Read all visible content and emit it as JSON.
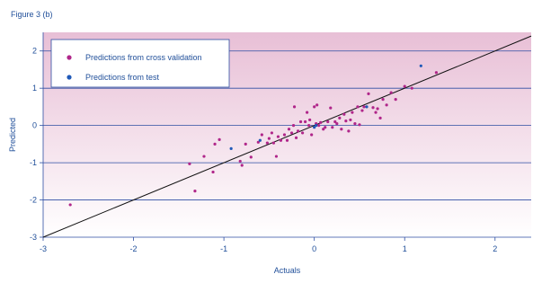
{
  "figure_label": "Figure 3 (b)",
  "colors": {
    "cross_validation": "#b0268a",
    "test": "#1f59b8",
    "axis_text": "#1f4e99",
    "gridline": "#2e4ea3",
    "line": "#111111",
    "bg_top": "#e8bfd6",
    "bg_bottom": "#ffffff"
  },
  "chart_data": {
    "type": "scatter",
    "title": "",
    "xlabel": "Actuals",
    "ylabel": "Predicted",
    "xlim": [
      -3,
      2.4
    ],
    "ylim": [
      -3,
      2.5
    ],
    "xticks": [
      "-3",
      "-2",
      "-1",
      "0",
      "1",
      "2"
    ],
    "yticks": [
      "-3",
      "-2",
      "-1",
      "0",
      "1",
      "2"
    ],
    "grid": "horizontal",
    "legend": "top-left",
    "reference_line": {
      "from": [
        -3,
        -3
      ],
      "to": [
        2.4,
        2.4
      ]
    },
    "series": [
      {
        "name": "Predictions from cross validation",
        "color": "#b0268a",
        "points": [
          [
            -2.7,
            -2.13
          ],
          [
            -1.38,
            -1.03
          ],
          [
            -1.32,
            -1.76
          ],
          [
            -1.22,
            -0.83
          ],
          [
            -1.12,
            -1.25
          ],
          [
            -1.1,
            -0.5
          ],
          [
            -1.05,
            -0.38
          ],
          [
            -0.82,
            -0.96
          ],
          [
            -0.8,
            -1.07
          ],
          [
            -0.76,
            -0.5
          ],
          [
            -0.7,
            -0.85
          ],
          [
            -0.62,
            -0.45
          ],
          [
            -0.58,
            -0.25
          ],
          [
            -0.52,
            -0.47
          ],
          [
            -0.5,
            -0.35
          ],
          [
            -0.47,
            -0.2
          ],
          [
            -0.45,
            -0.47
          ],
          [
            -0.42,
            -0.83
          ],
          [
            -0.4,
            -0.3
          ],
          [
            -0.37,
            -0.4
          ],
          [
            -0.33,
            -0.25
          ],
          [
            -0.3,
            -0.4
          ],
          [
            -0.28,
            -0.1
          ],
          [
            -0.25,
            -0.2
          ],
          [
            -0.23,
            0.0
          ],
          [
            -0.22,
            0.5
          ],
          [
            -0.2,
            -0.33
          ],
          [
            -0.18,
            -0.15
          ],
          [
            -0.15,
            0.1
          ],
          [
            -0.13,
            -0.2
          ],
          [
            -0.1,
            0.1
          ],
          [
            -0.08,
            0.35
          ],
          [
            -0.06,
            0.0
          ],
          [
            -0.05,
            0.15
          ],
          [
            -0.03,
            -0.25
          ],
          [
            0.0,
            0.5
          ],
          [
            0.02,
            0.05
          ],
          [
            0.03,
            0.55
          ],
          [
            0.05,
            0.0
          ],
          [
            0.07,
            0.08
          ],
          [
            0.1,
            -0.1
          ],
          [
            0.12,
            -0.05
          ],
          [
            0.15,
            0.1
          ],
          [
            0.18,
            0.47
          ],
          [
            0.2,
            -0.05
          ],
          [
            0.23,
            0.1
          ],
          [
            0.25,
            0.05
          ],
          [
            0.28,
            0.2
          ],
          [
            0.3,
            -0.1
          ],
          [
            0.33,
            0.3
          ],
          [
            0.35,
            0.12
          ],
          [
            0.38,
            -0.15
          ],
          [
            0.4,
            0.15
          ],
          [
            0.42,
            0.35
          ],
          [
            0.45,
            0.05
          ],
          [
            0.48,
            0.5
          ],
          [
            0.5,
            0.02
          ],
          [
            0.53,
            0.4
          ],
          [
            0.55,
            0.5
          ],
          [
            0.6,
            0.85
          ],
          [
            0.65,
            0.48
          ],
          [
            0.68,
            0.35
          ],
          [
            0.7,
            0.45
          ],
          [
            0.73,
            0.2
          ],
          [
            0.76,
            0.7
          ],
          [
            0.8,
            0.55
          ],
          [
            0.85,
            0.88
          ],
          [
            0.9,
            0.7
          ],
          [
            1.0,
            1.05
          ],
          [
            1.08,
            1.0
          ],
          [
            1.35,
            1.42
          ]
        ]
      },
      {
        "name": "Predictions from test",
        "color": "#1f59b8",
        "points": [
          [
            -0.92,
            -0.62
          ],
          [
            -0.6,
            -0.4
          ],
          [
            0.0,
            -0.05
          ],
          [
            0.02,
            0.0
          ],
          [
            0.58,
            0.5
          ],
          [
            1.18,
            1.6
          ]
        ]
      }
    ]
  }
}
